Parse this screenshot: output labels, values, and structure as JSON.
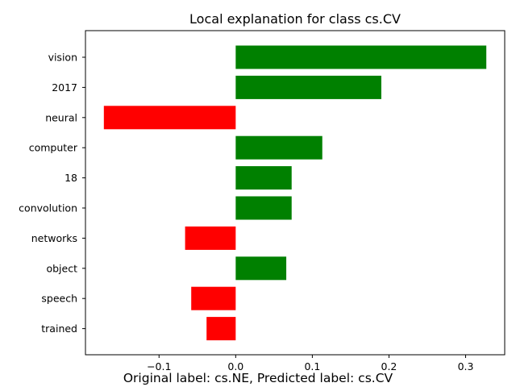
{
  "chart_data": {
    "type": "bar",
    "orientation": "horizontal",
    "title": "Local explanation for class cs.CV",
    "caption": "Original label: cs.NE, Predicted label: cs.CV",
    "categories": [
      "vision",
      "2017",
      "neural",
      "computer",
      "18",
      "convolution",
      "networks",
      "object",
      "speech",
      "trained"
    ],
    "values": [
      0.327,
      0.19,
      -0.172,
      0.113,
      0.073,
      0.073,
      -0.066,
      0.066,
      -0.058,
      -0.038
    ],
    "positive_color": "#008000",
    "negative_color": "#ff0000",
    "xlim": [
      -0.196,
      0.351
    ],
    "xticks": [
      -0.1,
      0.0,
      0.1,
      0.2,
      0.3
    ],
    "xtick_labels": [
      "−0.1",
      "0.0",
      "0.1",
      "0.2",
      "0.3"
    ],
    "xlabel": "",
    "ylabel": "",
    "grid": false,
    "legend": "none"
  }
}
